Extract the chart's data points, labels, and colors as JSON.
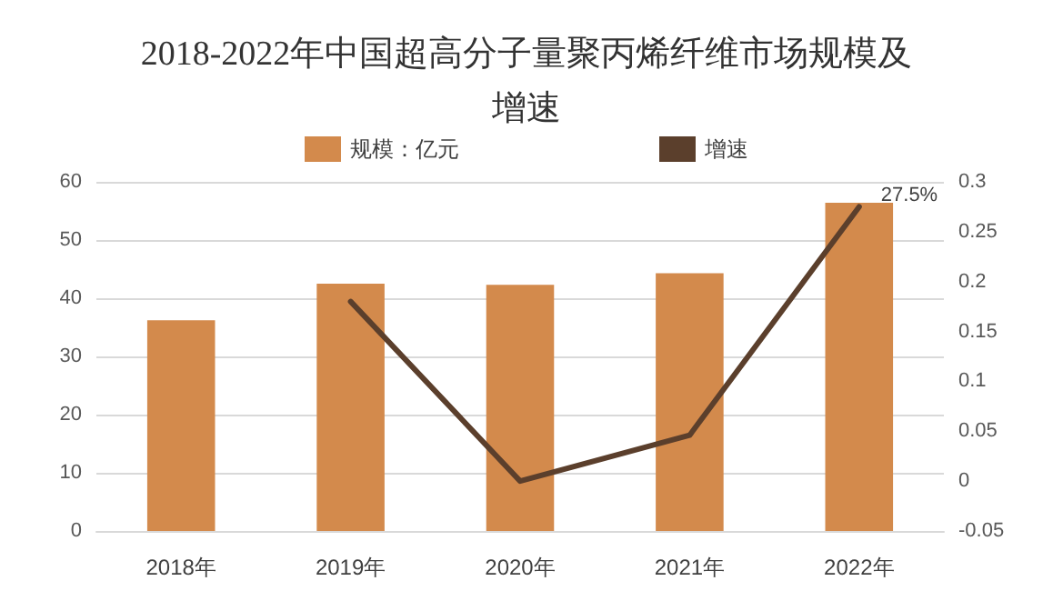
{
  "chart_data": {
    "type": "bar",
    "title": "2018-2022年中国超高分子量聚丙烯纤维市场规模及增速",
    "categories": [
      "2018年",
      "2019年",
      "2020年",
      "2021年",
      "2022年"
    ],
    "series": [
      {
        "name": "规模：亿元",
        "color": "#d38a4c",
        "values": [
          36.2,
          42.5,
          42.3,
          44.3,
          56.4
        ]
      },
      {
        "name": "增速",
        "type": "line",
        "axis": "y2",
        "color": "#5b3f2c",
        "values": [
          null,
          0.18,
          0,
          0.046,
          0.275
        ],
        "value_labels": [
          null,
          null,
          null,
          null,
          "27.5%"
        ]
      }
    ],
    "ylim": [
      0,
      60
    ],
    "yticks": [
      0,
      10,
      20,
      30,
      40,
      50,
      60
    ],
    "y2lim": [
      -0.05,
      0.3
    ],
    "y2ticks": [
      -0.05,
      0,
      0.05,
      0.1,
      0.15,
      0.2,
      0.25,
      0.3
    ],
    "grid": "y",
    "legend": "top",
    "marker": "none",
    "line_style": "solid"
  }
}
